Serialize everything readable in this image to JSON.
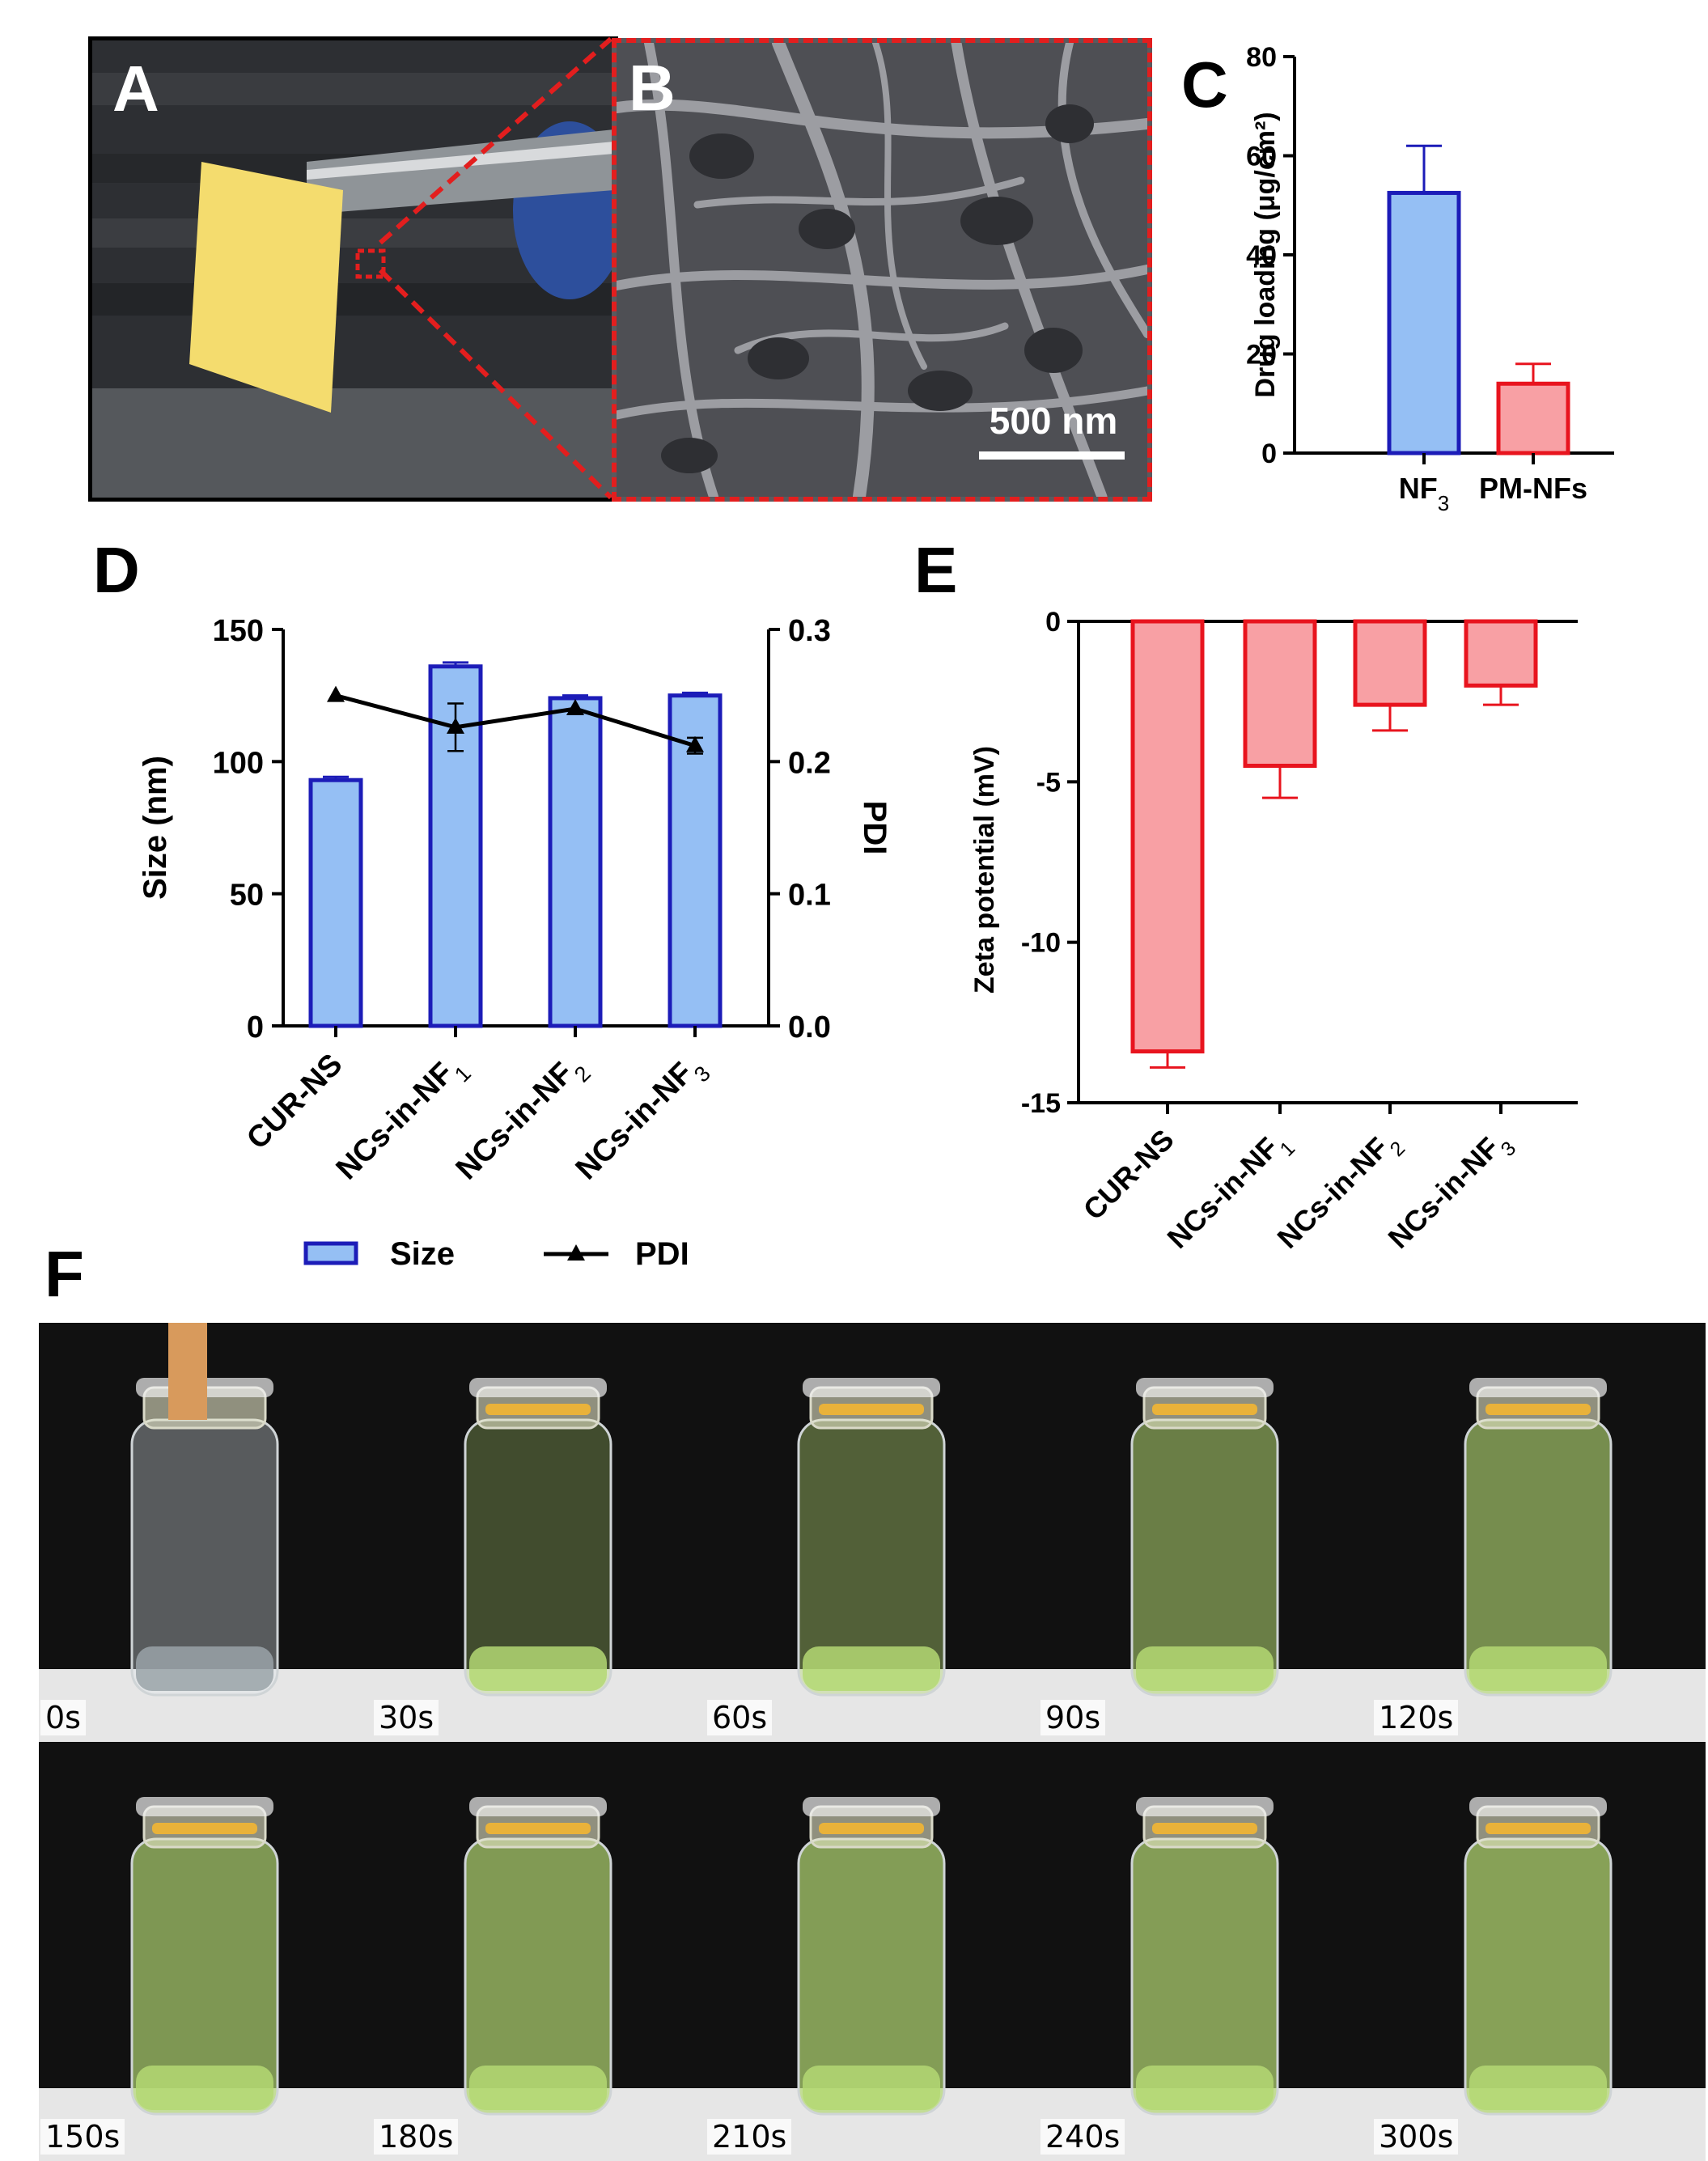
{
  "panels": {
    "A": {
      "letter": "A"
    },
    "B": {
      "letter": "B",
      "scale_bar": "500 nm"
    },
    "C": {
      "letter": "C"
    },
    "D": {
      "letter": "D"
    },
    "E": {
      "letter": "E"
    },
    "F": {
      "letter": "F",
      "time_labels": [
        "0s",
        "30s",
        "60s",
        "90s",
        "120s",
        "150s",
        "180s",
        "210s",
        "240s",
        "300s"
      ]
    }
  },
  "colors": {
    "blue_fill": "#95bff4",
    "blue_stroke": "#1c1cb8",
    "red_fill": "#f8a0a4",
    "red_stroke": "#e8141e",
    "callout": "#e31e1e",
    "film": "#f4dc6e",
    "liquid_green": "#b4d873"
  },
  "chart_data": [
    {
      "id": "C",
      "type": "bar",
      "categories": [
        "NF3",
        "PM-NFs"
      ],
      "category_labels": [
        {
          "base": "NF",
          "sub": "3"
        },
        {
          "base": "PM-NFs",
          "sub": ""
        }
      ],
      "values": [
        52.5,
        14.0
      ],
      "errors": [
        9.5,
        4.0
      ],
      "ylabel": "Drug loading (μg/cm²)",
      "ylim": [
        0,
        80
      ],
      "yticks": [
        0,
        20,
        40,
        60,
        80
      ],
      "colors": [
        "blue",
        "red"
      ]
    },
    {
      "id": "D",
      "type": "bar",
      "categories": [
        "CUR-NS",
        "NCs-in-NF1",
        "NCs-in-NF2",
        "NCs-in-NF3"
      ],
      "category_labels": [
        {
          "base": "CUR-NS",
          "sub": ""
        },
        {
          "base": "NCs-in-NF",
          "sub": "1"
        },
        {
          "base": "NCs-in-NF",
          "sub": "2"
        },
        {
          "base": "NCs-in-NF",
          "sub": "3"
        }
      ],
      "series": [
        {
          "name": "Size",
          "type": "bar",
          "axis": "left",
          "values": [
            93,
            136,
            124,
            125
          ],
          "errors": [
            1.2,
            1.5,
            1.0,
            1.0
          ]
        },
        {
          "name": "PDI",
          "type": "line",
          "axis": "right",
          "values": [
            0.25,
            0.226,
            0.24,
            0.212
          ],
          "errors": [
            0,
            0.018,
            0,
            0.006
          ]
        }
      ],
      "ylabel": "Size (nm)",
      "ylim": [
        0,
        150
      ],
      "yticks": [
        0,
        50,
        100,
        150
      ],
      "y2label": "PDI",
      "y2lim": [
        0,
        0.3
      ],
      "y2ticks": [
        "0.0",
        "0.1",
        "0.2",
        "0.3"
      ],
      "legend": [
        "Size",
        "PDI"
      ],
      "legend_position": "bottom"
    },
    {
      "id": "E",
      "type": "bar",
      "categories": [
        "CUR-NS",
        "NCs-in-NF1",
        "NCs-in-NF2",
        "NCs-in-NF3"
      ],
      "category_labels": [
        {
          "base": "CUR-NS",
          "sub": ""
        },
        {
          "base": "NCs-in-NF",
          "sub": "1"
        },
        {
          "base": "NCs-in-NF",
          "sub": "2"
        },
        {
          "base": "NCs-in-NF",
          "sub": "3"
        }
      ],
      "values": [
        -13.4,
        -4.5,
        -2.6,
        -2.0
      ],
      "errors": [
        0.5,
        1.0,
        0.8,
        0.6
      ],
      "ylabel": "Zeta potential (mV)",
      "ylim": [
        -15,
        0
      ],
      "yticks": [
        0,
        -5,
        -10,
        -15
      ]
    }
  ]
}
